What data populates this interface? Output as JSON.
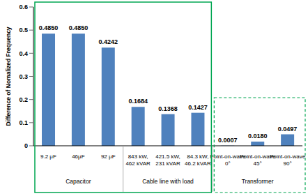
{
  "chart_data": {
    "type": "bar",
    "y_label": "Difference of Nomalized Frequency",
    "categories": [
      "9.2 μF",
      "46μF",
      "92 μF",
      "843 kW, 462 kVAR",
      "421.5 kW, 231 kVAR",
      "84.3 kW, 46.2 kVAR",
      "Point-on-wave 0°",
      "Point-on-wave 45°",
      "Point-on-wave 90°"
    ],
    "groups": [
      "Capacitor",
      "Capacitor",
      "Capacitor",
      "Cable line with load",
      "Cable line with load",
      "Cable line with load",
      "Transformer",
      "Transformer",
      "Transformer"
    ],
    "values": [
      0.485,
      0.485,
      0.4242,
      0.1684,
      0.1368,
      0.1427,
      0.0007,
      0.018,
      0.0497
    ],
    "value_labels": [
      "0.4850",
      "0.4850",
      "0.4242",
      "0.1684",
      "0.1368",
      "0.1427",
      "0.0007",
      "0.0180",
      "0.0497"
    ],
    "color": "#4f81bd",
    "ylim": [
      0,
      0.6
    ],
    "yticks": [
      0,
      0.1,
      0.2,
      0.3,
      0.4,
      0.5,
      0.6
    ],
    "grid": false,
    "data_labels": true
  }
}
